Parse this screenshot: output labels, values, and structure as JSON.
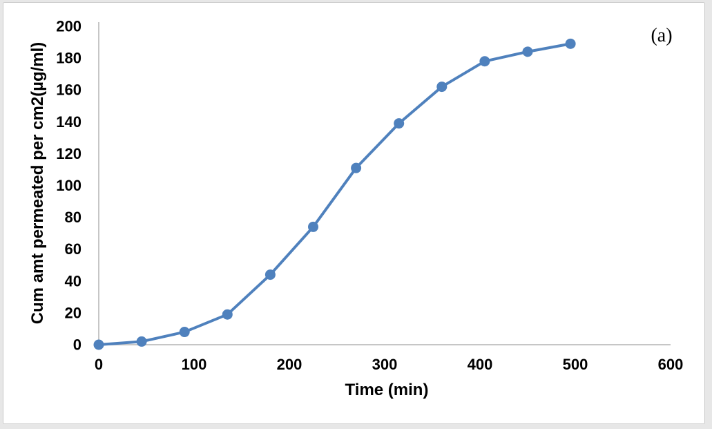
{
  "figure": {
    "panel_label": "(a)"
  },
  "chart_data": {
    "type": "line",
    "title": "",
    "xlabel": "Time (min)",
    "ylabel": "Cum amt permeated per cm2(µg/ml)",
    "x": [
      0,
      45,
      90,
      135,
      180,
      225,
      270,
      315,
      360,
      405,
      450,
      495
    ],
    "y": [
      0,
      2,
      8,
      19,
      44,
      74,
      111,
      139,
      162,
      178,
      184,
      189
    ],
    "xlim": [
      0,
      600
    ],
    "ylim": [
      0,
      200
    ],
    "xticks": [
      0,
      100,
      200,
      300,
      400,
      500,
      600
    ],
    "yticks": [
      0,
      20,
      40,
      60,
      80,
      100,
      120,
      140,
      160,
      180,
      200
    ],
    "grid": false,
    "legend": "none",
    "marker": "circle",
    "colors": {
      "line": "#4F81BD",
      "marker": "#4F81BD",
      "axis": "#C6C6C6",
      "text": "#000000",
      "border": "#C9C9C9",
      "background": "#FFFFFF",
      "page_margin": "#E7E7E7"
    }
  }
}
